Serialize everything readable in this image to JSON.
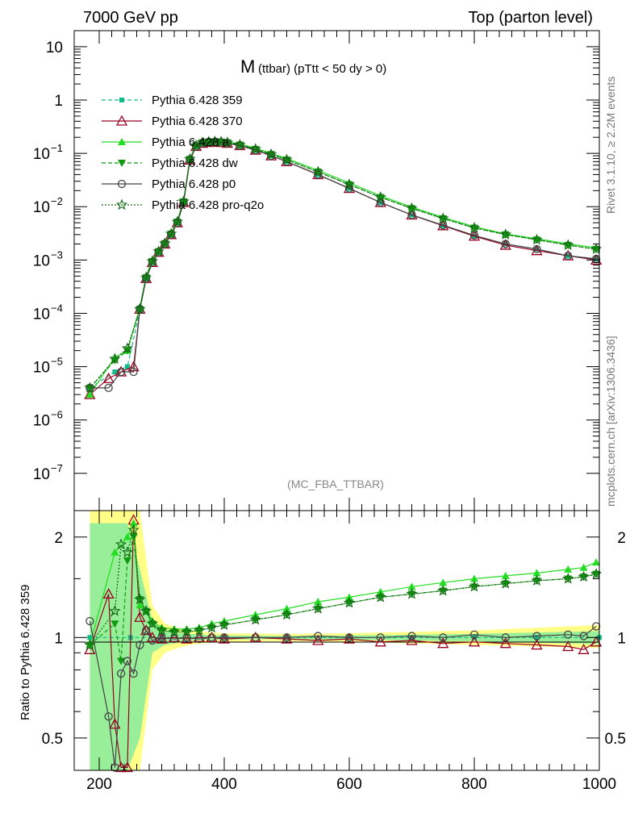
{
  "header": {
    "left": "7000 GeV pp",
    "right": "Top (parton level)"
  },
  "side_text": {
    "rivet": "Rivet 3.1.10, ≥ 2.2M events",
    "mcplots": "mcplots.cern.ch [arXiv:1306.3436]"
  },
  "title": {
    "main": "M",
    "sub": "(ttbar)  (pTtt < 50 dy > 0)"
  },
  "plot_name": "(MC_FBA_TTBAR)",
  "ratio_ylabel": "Ratio to Pythia 6.428 359",
  "colors": {
    "p359": "#11bb88",
    "p370": "#990022",
    "pa": "#22dd22",
    "pdw": "#119911",
    "pp0": "#444444",
    "pq2o": "#116611",
    "band_yellow": "#ffff88",
    "band_green": "#99ee99"
  },
  "chart_data": [
    {
      "type": "line",
      "title": "M (ttbar)  (pTtt < 50 dy > 0)",
      "xlabel": "",
      "ylabel": "",
      "y_scale": "log",
      "xlim": [
        160,
        1000
      ],
      "ylim": [
        2e-08,
        20
      ],
      "x_ticks": [
        200,
        400,
        600,
        800,
        1000
      ],
      "y_ticks": [
        {
          "value": 1e-07,
          "base": "10",
          "exp": "−7"
        },
        {
          "value": 1e-06,
          "base": "10",
          "exp": "−6"
        },
        {
          "value": 1e-05,
          "base": "10",
          "exp": "−5"
        },
        {
          "value": 0.0001,
          "base": "10",
          "exp": "−4"
        },
        {
          "value": 0.001,
          "base": "10",
          "exp": "−3"
        },
        {
          "value": 0.01,
          "base": "10",
          "exp": "−2"
        },
        {
          "value": 0.1,
          "base": "10",
          "exp": "−1"
        },
        {
          "value": 1,
          "base": "1",
          "exp": ""
        },
        {
          "value": 10,
          "base": "10",
          "exp": ""
        }
      ],
      "legend_position": "top-left",
      "series": [
        {
          "name": "Pythia 6.428 359",
          "key": "p359",
          "marker": "square",
          "dash": "5,3",
          "x": [
            185,
            225,
            245,
            265,
            275,
            285,
            295,
            305,
            315,
            325,
            335,
            345,
            355,
            365,
            375,
            385,
            395,
            405,
            425,
            450,
            475,
            500,
            550,
            600,
            650,
            700,
            750,
            800,
            850,
            900,
            950,
            995
          ],
          "y": [
            4e-06,
            8e-06,
            1e-05,
            0.00011,
            0.00045,
            0.0009,
            0.0014,
            0.002,
            0.003,
            0.005,
            0.012,
            0.075,
            0.135,
            0.155,
            0.16,
            0.162,
            0.16,
            0.155,
            0.14,
            0.115,
            0.09,
            0.07,
            0.04,
            0.022,
            0.012,
            0.007,
            0.0044,
            0.0028,
            0.002,
            0.0016,
            0.0012,
            0.00105
          ]
        },
        {
          "name": "Pythia 6.428 370",
          "key": "p370",
          "marker": "triangle-open",
          "dash": "",
          "x": [
            185,
            215,
            235,
            255,
            265,
            275,
            285,
            295,
            305,
            315,
            325,
            335,
            345,
            355,
            365,
            375,
            385,
            395,
            405,
            425,
            450,
            475,
            500,
            550,
            600,
            650,
            700,
            750,
            800,
            850,
            900,
            950,
            995
          ],
          "y": [
            3e-06,
            6e-06,
            8e-06,
            1e-05,
            0.00012,
            0.00045,
            0.0009,
            0.0014,
            0.002,
            0.003,
            0.005,
            0.012,
            0.075,
            0.135,
            0.155,
            0.16,
            0.162,
            0.16,
            0.155,
            0.14,
            0.115,
            0.09,
            0.07,
            0.04,
            0.022,
            0.012,
            0.007,
            0.0044,
            0.0028,
            0.0019,
            0.0015,
            0.0012,
            0.001
          ]
        },
        {
          "name": "Pythia 6.428 a",
          "key": "pa",
          "marker": "triangle",
          "dash": "",
          "x": [
            185,
            225,
            245,
            265,
            275,
            285,
            295,
            305,
            315,
            325,
            335,
            345,
            355,
            365,
            375,
            385,
            395,
            405,
            425,
            450,
            475,
            500,
            550,
            600,
            650,
            700,
            750,
            800,
            850,
            900,
            950,
            995
          ],
          "y": [
            3e-06,
            1.5e-05,
            2e-05,
            0.00013,
            0.0005,
            0.001,
            0.0015,
            0.0021,
            0.0032,
            0.0055,
            0.013,
            0.08,
            0.145,
            0.165,
            0.17,
            0.172,
            0.17,
            0.165,
            0.15,
            0.125,
            0.1,
            0.08,
            0.048,
            0.028,
            0.016,
            0.0098,
            0.0063,
            0.0042,
            0.0031,
            0.0025,
            0.002,
            0.0017
          ]
        },
        {
          "name": "Pythia 6.428 dw",
          "key": "pdw",
          "marker": "triangle-down",
          "dash": "5,3",
          "x": [
            185,
            225,
            245,
            265,
            275,
            285,
            295,
            305,
            315,
            325,
            335,
            345,
            355,
            365,
            375,
            385,
            395,
            405,
            425,
            450,
            475,
            500,
            550,
            600,
            650,
            700,
            750,
            800,
            850,
            900,
            950,
            995
          ],
          "y": [
            4e-06,
            1.3e-05,
            2e-05,
            0.00012,
            0.00047,
            0.00095,
            0.00145,
            0.00205,
            0.0031,
            0.0052,
            0.0125,
            0.078,
            0.14,
            0.16,
            0.165,
            0.167,
            0.165,
            0.16,
            0.145,
            0.12,
            0.096,
            0.076,
            0.045,
            0.026,
            0.015,
            0.0093,
            0.006,
            0.004,
            0.003,
            0.0024,
            0.0019,
            0.0016
          ]
        },
        {
          "name": "Pythia 6.428 p0",
          "key": "pp0",
          "marker": "circle-open",
          "dash": "",
          "x": [
            185,
            215,
            235,
            255,
            265,
            275,
            285,
            295,
            305,
            315,
            325,
            335,
            345,
            355,
            365,
            375,
            385,
            395,
            405,
            425,
            450,
            475,
            500,
            550,
            600,
            650,
            700,
            750,
            800,
            850,
            900,
            950,
            995
          ],
          "y": [
            4e-06,
            4e-06,
            8e-06,
            8e-06,
            0.00012,
            0.00045,
            0.0009,
            0.0014,
            0.002,
            0.003,
            0.005,
            0.012,
            0.075,
            0.135,
            0.155,
            0.16,
            0.162,
            0.16,
            0.155,
            0.14,
            0.115,
            0.09,
            0.07,
            0.04,
            0.022,
            0.012,
            0.007,
            0.0045,
            0.0029,
            0.002,
            0.0016,
            0.0012,
            0.00105
          ]
        },
        {
          "name": "Pythia 6.428 pro-q2o",
          "key": "pq2o",
          "marker": "star-open",
          "dash": "2,2",
          "x": [
            185,
            225,
            245,
            265,
            275,
            285,
            295,
            305,
            315,
            325,
            335,
            345,
            355,
            365,
            375,
            385,
            395,
            405,
            425,
            450,
            475,
            500,
            550,
            600,
            650,
            700,
            750,
            800,
            850,
            900,
            950,
            995
          ],
          "y": [
            4e-06,
            1.4e-05,
            2.2e-05,
            0.00012,
            0.00047,
            0.00095,
            0.00145,
            0.00205,
            0.0031,
            0.0052,
            0.0125,
            0.078,
            0.14,
            0.16,
            0.165,
            0.167,
            0.165,
            0.16,
            0.145,
            0.12,
            0.096,
            0.076,
            0.045,
            0.026,
            0.015,
            0.0093,
            0.006,
            0.004,
            0.003,
            0.0024,
            0.0019,
            0.0016
          ]
        }
      ]
    },
    {
      "type": "line",
      "title": "",
      "xlabel": "",
      "ylabel": "Ratio to Pythia 6.428 359",
      "y_scale": "log",
      "xlim": [
        160,
        1000
      ],
      "ylim": [
        0.4,
        2.4
      ],
      "x_ticks": [
        200,
        400,
        600,
        800,
        1000
      ],
      "y_ticks": [
        {
          "value": 0.5,
          "label": "0.5"
        },
        {
          "value": 1,
          "label": "1"
        },
        {
          "value": 2,
          "label": "2"
        }
      ],
      "bands": {
        "x": [
          185,
          205,
          225,
          245,
          265,
          285,
          305,
          325,
          345,
          365,
          400,
          500,
          600,
          700,
          800,
          900,
          1000
        ],
        "yellow_lo": [
          0.4,
          0.4,
          0.4,
          0.4,
          0.4,
          0.8,
          0.9,
          0.93,
          0.95,
          0.96,
          0.97,
          0.975,
          0.97,
          0.96,
          0.95,
          0.94,
          0.93
        ],
        "yellow_hi": [
          2.4,
          2.4,
          2.4,
          2.4,
          2.4,
          1.25,
          1.1,
          1.07,
          1.05,
          1.04,
          1.03,
          1.025,
          1.03,
          1.04,
          1.05,
          1.07,
          1.09
        ],
        "green_lo": [
          0.4,
          0.4,
          0.4,
          0.4,
          0.5,
          0.9,
          0.95,
          0.965,
          0.975,
          0.98,
          0.985,
          0.99,
          0.985,
          0.98,
          0.975,
          0.965,
          0.955
        ],
        "green_hi": [
          2.2,
          2.2,
          2.2,
          2.2,
          1.6,
          1.12,
          1.05,
          1.035,
          1.025,
          1.02,
          1.015,
          1.01,
          1.015,
          1.02,
          1.025,
          1.035,
          1.045
        ]
      },
      "series": [
        {
          "name": "Pythia 6.428 359",
          "key": "p359",
          "marker": "square",
          "dash": "5,3",
          "x": [
            185,
            250,
            300,
            400,
            500,
            600,
            700,
            800,
            900,
            1000
          ],
          "y": [
            1,
            1,
            1,
            1,
            1,
            1,
            1,
            1,
            1,
            1
          ]
        },
        {
          "name": "Pythia 6.428 370",
          "key": "p370",
          "marker": "triangle-open",
          "dash": "",
          "x": [
            185,
            215,
            225,
            235,
            245,
            255,
            265,
            275,
            285,
            300,
            320,
            340,
            360,
            380,
            400,
            450,
            500,
            550,
            600,
            650,
            700,
            750,
            800,
            850,
            900,
            950,
            975,
            995
          ],
          "y": [
            0.92,
            1.35,
            0.55,
            0.4,
            0.38,
            2.25,
            1.15,
            1.05,
            1.0,
            0.99,
            1.0,
            0.99,
            1.0,
            1.0,
            0.99,
            1.0,
            0.99,
            0.98,
            0.99,
            0.97,
            0.98,
            0.96,
            0.97,
            0.96,
            0.95,
            0.94,
            0.92,
            0.97
          ]
        },
        {
          "name": "Pythia 6.428 a",
          "key": "pa",
          "marker": "triangle",
          "dash": "",
          "x": [
            185,
            225,
            245,
            255,
            265,
            275,
            285,
            300,
            320,
            340,
            360,
            380,
            400,
            450,
            500,
            550,
            600,
            650,
            700,
            750,
            800,
            850,
            900,
            950,
            975,
            995
          ],
          "y": [
            0.95,
            1.8,
            2.0,
            2.2,
            1.25,
            1.2,
            1.12,
            1.07,
            1.06,
            1.06,
            1.07,
            1.1,
            1.12,
            1.17,
            1.22,
            1.28,
            1.32,
            1.37,
            1.42,
            1.46,
            1.5,
            1.53,
            1.56,
            1.6,
            1.62,
            1.68
          ]
        },
        {
          "name": "Pythia 6.428 dw",
          "key": "pdw",
          "marker": "triangle-down",
          "dash": "5,3",
          "x": [
            185,
            225,
            235,
            245,
            255,
            265,
            275,
            285,
            300,
            320,
            340,
            360,
            380,
            400,
            450,
            500,
            550,
            600,
            650,
            700,
            750,
            800,
            850,
            900,
            950,
            975,
            995
          ],
          "y": [
            0.95,
            1.1,
            0.85,
            1.7,
            2.0,
            1.3,
            1.2,
            1.1,
            1.05,
            1.04,
            1.04,
            1.05,
            1.07,
            1.09,
            1.13,
            1.17,
            1.22,
            1.27,
            1.32,
            1.35,
            1.38,
            1.42,
            1.45,
            1.48,
            1.5,
            1.52,
            1.55
          ]
        },
        {
          "name": "Pythia 6.428 p0",
          "key": "pp0",
          "marker": "circle-open",
          "dash": "",
          "x": [
            185,
            215,
            225,
            235,
            245,
            255,
            265,
            275,
            285,
            300,
            320,
            340,
            360,
            380,
            400,
            450,
            500,
            550,
            600,
            650,
            700,
            750,
            800,
            850,
            900,
            950,
            975,
            995
          ],
          "y": [
            1.12,
            0.58,
            0.4,
            0.78,
            0.85,
            0.78,
            0.95,
            1.05,
            0.98,
            1.0,
            0.99,
            1.0,
            0.99,
            1.0,
            1.0,
            1.0,
            1.0,
            1.01,
            1.0,
            1.0,
            1.01,
            1.0,
            1.02,
            1.0,
            1.01,
            1.02,
            1.01,
            1.08
          ]
        },
        {
          "name": "Pythia 6.428 pro-q2o",
          "key": "pq2o",
          "marker": "star-open",
          "dash": "2,2",
          "x": [
            185,
            225,
            235,
            245,
            255,
            265,
            275,
            285,
            300,
            320,
            340,
            360,
            380,
            400,
            450,
            500,
            550,
            600,
            650,
            700,
            750,
            800,
            850,
            900,
            950,
            975,
            995
          ],
          "y": [
            0.95,
            1.2,
            1.9,
            1.8,
            2.1,
            1.3,
            1.2,
            1.1,
            1.05,
            1.04,
            1.04,
            1.05,
            1.07,
            1.09,
            1.13,
            1.17,
            1.22,
            1.27,
            1.32,
            1.35,
            1.38,
            1.42,
            1.45,
            1.48,
            1.5,
            1.52,
            1.55
          ]
        }
      ]
    }
  ]
}
